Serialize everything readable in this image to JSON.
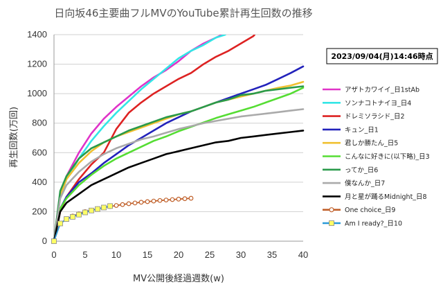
{
  "chart_data": {
    "type": "line",
    "title": "日向坂46主要曲フルMVのYouTube累計再生回数の推移",
    "xlabel": "MV公開後経過週数(w)",
    "ylabel": "再生回数(万回)",
    "xlim": [
      0,
      40
    ],
    "ylim": [
      0,
      1400
    ],
    "xticks": [
      "0",
      "5",
      "10",
      "15",
      "20",
      "25",
      "30",
      "35",
      "40"
    ],
    "yticks": [
      "0",
      "200",
      "400",
      "600",
      "800",
      "1000",
      "1200",
      "1400"
    ],
    "grid": "horizontal",
    "legend_position": "right",
    "date_label": "2023/09/04(月)14:46時点",
    "series": [
      {
        "name": "アザトカワイイ_日1stAb",
        "color": "#e033c8",
        "marker": "none",
        "x": [
          0,
          1,
          2,
          4,
          6,
          8,
          10,
          12,
          14,
          16,
          18,
          20,
          22,
          24,
          26,
          27
        ],
        "y": [
          0,
          330,
          440,
          600,
          730,
          830,
          910,
          980,
          1050,
          1110,
          1160,
          1220,
          1290,
          1340,
          1380,
          1400
        ]
      },
      {
        "name": "ソンナコトナイヨ_日4",
        "color": "#33e6e6",
        "marker": "none",
        "x": [
          0,
          1,
          2,
          4,
          6,
          8,
          10,
          12,
          14,
          16,
          18,
          20,
          22,
          24,
          26,
          27.5
        ],
        "y": [
          0,
          300,
          420,
          560,
          680,
          780,
          870,
          950,
          1030,
          1100,
          1170,
          1240,
          1290,
          1330,
          1380,
          1400
        ]
      },
      {
        "name": "ドレミソラシド_日2",
        "color": "#dd2222",
        "marker": "none",
        "x": [
          0,
          1,
          2,
          4,
          6,
          8,
          10,
          12,
          14,
          16,
          18,
          20,
          22,
          24,
          26,
          28,
          30,
          32,
          32.2
        ],
        "y": [
          0,
          200,
          300,
          420,
          520,
          600,
          760,
          870,
          940,
          1000,
          1050,
          1100,
          1140,
          1200,
          1250,
          1290,
          1340,
          1390,
          1400
        ]
      },
      {
        "name": "キュン_日1",
        "color": "#2222bb",
        "marker": "none",
        "x": [
          0,
          1,
          2,
          4,
          6,
          8,
          10,
          12,
          14,
          16,
          18,
          20,
          22,
          24,
          26,
          28,
          30,
          32,
          34,
          36,
          38,
          40
        ],
        "y": [
          0,
          220,
          300,
          400,
          460,
          530,
          590,
          650,
          700,
          750,
          800,
          840,
          880,
          910,
          940,
          970,
          1000,
          1030,
          1060,
          1100,
          1140,
          1185
        ]
      },
      {
        "name": "君しか勝たん_日5",
        "color": "#f0c030",
        "marker": "none",
        "x": [
          0,
          1,
          2,
          4,
          6,
          8,
          10,
          12,
          14,
          16,
          18,
          20,
          22,
          24,
          26,
          28,
          30,
          32,
          34,
          36,
          38,
          40
        ],
        "y": [
          0,
          310,
          420,
          530,
          610,
          670,
          710,
          740,
          770,
          800,
          830,
          860,
          880,
          910,
          940,
          960,
          980,
          1000,
          1020,
          1040,
          1055,
          1080
        ]
      },
      {
        "name": "こんなに好きに(以下略)_日3",
        "color": "#55dd33",
        "marker": "none",
        "x": [
          0,
          1,
          2,
          4,
          6,
          8,
          10,
          12,
          14,
          16,
          18,
          20,
          22,
          24,
          26,
          28,
          30,
          32,
          34,
          36,
          38,
          40
        ],
        "y": [
          0,
          220,
          290,
          380,
          450,
          510,
          560,
          600,
          640,
          680,
          710,
          745,
          775,
          805,
          835,
          860,
          885,
          910,
          940,
          970,
          1000,
          1040
        ]
      },
      {
        "name": "ってか_日6",
        "color": "#2a9a4a",
        "marker": "none",
        "x": [
          0,
          1,
          2,
          4,
          6,
          8,
          10,
          12,
          14,
          16,
          18,
          20,
          22,
          24,
          26,
          28,
          30,
          32,
          34,
          36,
          38,
          40
        ],
        "y": [
          0,
          340,
          440,
          560,
          630,
          670,
          710,
          750,
          780,
          810,
          840,
          860,
          880,
          910,
          940,
          960,
          990,
          1000,
          1020,
          1030,
          1040,
          1050
        ]
      },
      {
        "name": "僕なんか_日7",
        "color": "#aaaaaa",
        "marker": "none",
        "x": [
          0,
          1,
          2,
          4,
          6,
          8,
          10,
          12,
          14,
          16,
          18,
          20,
          22,
          24,
          26,
          28,
          30,
          32,
          34,
          36,
          38,
          40
        ],
        "y": [
          0,
          290,
          380,
          470,
          540,
          590,
          630,
          660,
          690,
          710,
          735,
          760,
          780,
          800,
          815,
          830,
          845,
          855,
          865,
          875,
          885,
          895
        ]
      },
      {
        "name": "月と星が踊るMidnight_日8",
        "color": "#000000",
        "marker": "none",
        "x": [
          0,
          1,
          2,
          4,
          6,
          8,
          10,
          12,
          14,
          16,
          18,
          20,
          22,
          24,
          26,
          28,
          30,
          32,
          34,
          36,
          38,
          40
        ],
        "y": [
          0,
          200,
          260,
          320,
          380,
          420,
          460,
          500,
          530,
          560,
          590,
          610,
          630,
          650,
          670,
          680,
          700,
          710,
          720,
          730,
          740,
          750
        ]
      },
      {
        "name": "One choice_日9",
        "color": "#c0602a",
        "marker": "circle",
        "x": [
          0,
          1,
          2,
          3,
          4,
          5,
          6,
          7,
          8,
          9,
          10,
          11,
          12,
          13,
          14,
          15,
          16,
          17,
          18,
          19,
          20,
          21,
          22
        ],
        "y": [
          0,
          120,
          150,
          170,
          185,
          200,
          210,
          220,
          228,
          235,
          242,
          248,
          254,
          259,
          264,
          268,
          272,
          276,
          279,
          282,
          285,
          288,
          291
        ]
      },
      {
        "name": "Am I ready?_日10",
        "color": "#2a9ad8",
        "marker": "square",
        "x": [
          0,
          1,
          2,
          3,
          4,
          5,
          6,
          7,
          8,
          9
        ],
        "y": [
          0,
          120,
          150,
          165,
          180,
          195,
          208,
          218,
          228,
          238
        ]
      }
    ]
  }
}
